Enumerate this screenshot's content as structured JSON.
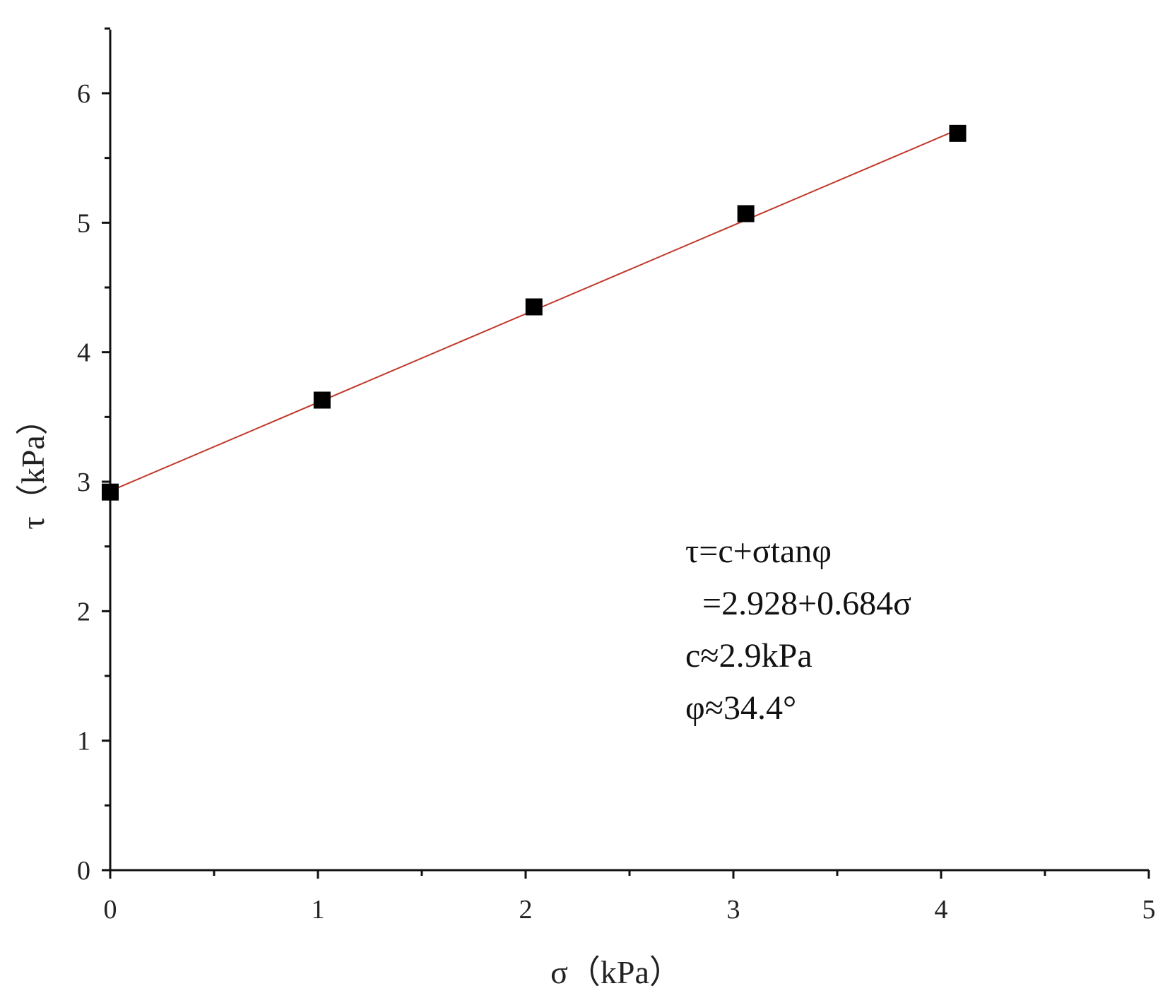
{
  "chart_data": {
    "type": "scatter",
    "xlabel": "σ（kPa）",
    "ylabel": "τ（kPa）",
    "xlim": [
      0,
      5
    ],
    "ylim": [
      0,
      6.5
    ],
    "x_ticks": [
      0,
      1,
      2,
      3,
      4,
      5
    ],
    "y_ticks": [
      0,
      1,
      2,
      3,
      4,
      5,
      6
    ],
    "grid": false,
    "legend": "none",
    "series": [
      {
        "marker": "square",
        "color": "#000000",
        "points": [
          {
            "x": 0,
            "y": 2.92
          },
          {
            "x": 1.02,
            "y": 3.63
          },
          {
            "x": 2.04,
            "y": 4.35
          },
          {
            "x": 3.06,
            "y": 5.07
          },
          {
            "x": 4.08,
            "y": 5.69
          }
        ]
      }
    ],
    "fit_line": {
      "intercept": 2.928,
      "slope": 0.684,
      "x_range": [
        0,
        4.08
      ],
      "color": "#c0392b"
    },
    "annotation": {
      "lines": [
        "τ=c+σtanφ",
        "  =2.928+0.684σ",
        "c≈2.9kPa",
        "φ≈34.4°"
      ]
    }
  }
}
